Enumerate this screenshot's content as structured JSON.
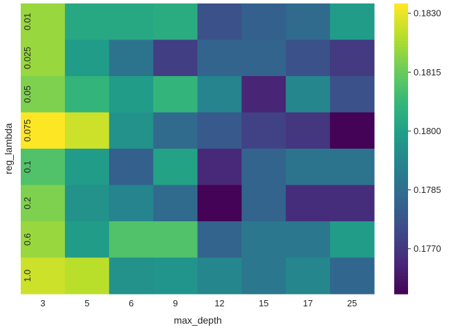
{
  "chart_data": {
    "type": "heatmap",
    "xlabel": "max_depth",
    "ylabel": "reg_lambda",
    "x_categories": [
      "3",
      "5",
      "6",
      "9",
      "12",
      "15",
      "17",
      "25"
    ],
    "y_categories": [
      "0.01",
      "0.025",
      "0.05",
      "0.075",
      "0.1",
      "0.2",
      "0.6",
      "1.0"
    ],
    "values": [
      [
        0.1821,
        0.1803,
        0.1803,
        0.1804,
        0.1777,
        0.1781,
        0.1784,
        0.1799
      ],
      [
        0.1821,
        0.1799,
        0.1787,
        0.1772,
        0.1782,
        0.1782,
        0.1777,
        0.1771
      ],
      [
        0.1818,
        0.1807,
        0.1799,
        0.1807,
        0.1792,
        0.1766,
        0.1793,
        0.1777
      ],
      [
        0.1833,
        0.1827,
        0.1796,
        0.1784,
        0.1779,
        0.1773,
        0.177,
        0.1759
      ],
      [
        0.1812,
        0.1799,
        0.1781,
        0.1801,
        0.1767,
        0.1782,
        0.1787,
        0.1787
      ],
      [
        0.1818,
        0.1796,
        0.1792,
        0.1784,
        0.1759,
        0.1782,
        0.1768,
        0.1768
      ],
      [
        0.1821,
        0.1799,
        0.1812,
        0.1812,
        0.1782,
        0.1788,
        0.1788,
        0.1799
      ],
      [
        0.1827,
        0.1825,
        0.1796,
        0.1797,
        0.1793,
        0.1788,
        0.1793,
        0.1783
      ]
    ],
    "colormap": "viridis",
    "color_range": [
      0.17585,
      0.18325
    ],
    "colorbar_ticks": [
      "0.1830",
      "0.1815",
      "0.1800",
      "0.1785",
      "0.1770"
    ]
  }
}
